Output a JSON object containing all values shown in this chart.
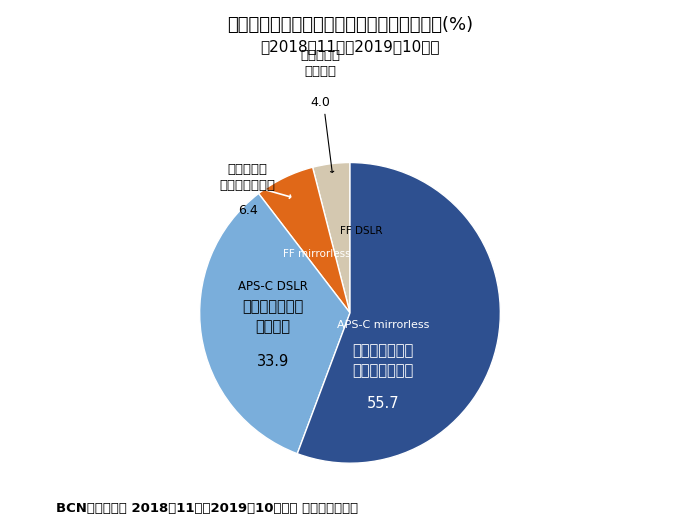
{
  "title_line1": "レンズ交換型カメラタイプ別販売台数構成比(%)",
  "title_line2": "（2018年11月～2019年10月）",
  "footer": "BCNランキング 2018年11月～2019年10月累計 ＜最大パネル＞",
  "slices": [
    {
      "label_jp": "フルサイズ未満\nミラーレス一眼",
      "label_en": "APS-C mirrorless",
      "value": 55.7,
      "color": "#2e5090",
      "text_color": "white"
    },
    {
      "label_jp": "フルサイズ\n一眼レフ",
      "label_en": "FF DSLR",
      "value": 4.0,
      "color": "#d4c8b0",
      "text_color": "black"
    },
    {
      "label_jp": "フルサイズ\nミラーレス一眼",
      "label_en": "FF mirrorless",
      "value": 6.4,
      "color": "#e06818",
      "text_color": "white"
    },
    {
      "label_jp": "フルサイズ未満\n一眼レフ",
      "label_en": "APS-C DSLR",
      "value": 33.9,
      "color": "#7aaedb",
      "text_color": "black"
    }
  ],
  "bg_color": "#ffffff"
}
